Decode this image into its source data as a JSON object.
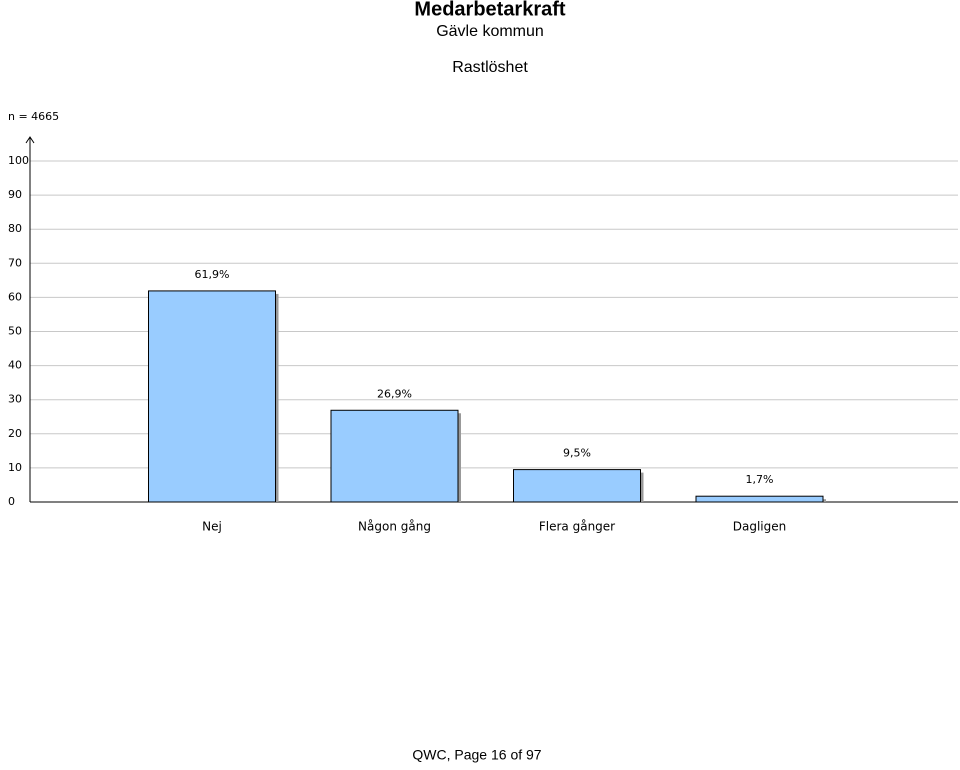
{
  "header": {
    "title": "Medarbetarkraft",
    "subtitle": "Gävle kommun"
  },
  "chart_data": {
    "type": "bar",
    "title": "Rastlöshet",
    "note": "n = 4665",
    "categories": [
      "Nej",
      "Någon gång",
      "Flera gånger",
      "Dagligen"
    ],
    "values": [
      61.9,
      26.9,
      9.5,
      1.7
    ],
    "value_labels": [
      "61,9%",
      "26,9%",
      "9,5%",
      "1,7%"
    ],
    "color": "#99ccff",
    "ylim": [
      0,
      100
    ],
    "yticks": [
      0,
      10,
      20,
      30,
      40,
      50,
      60,
      70,
      80,
      90,
      100
    ],
    "grid": true
  },
  "footer": "QWC, Page 16 of 97"
}
